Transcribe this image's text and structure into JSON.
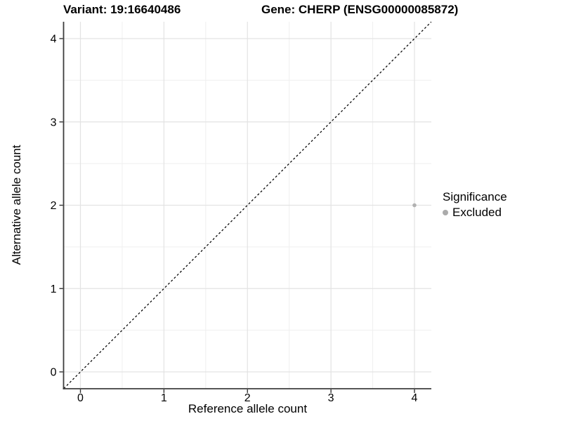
{
  "figure": {
    "titles": {
      "variant": "Variant: 19:16640486",
      "gene": "Gene: CHERP (ENSG00000085872)"
    }
  },
  "chart_data": {
    "type": "scatter",
    "xlabel": "Reference allele count",
    "ylabel": "Alternative allele count",
    "x_ticks": [
      0,
      1,
      2,
      3,
      4
    ],
    "y_ticks": [
      0,
      1,
      2,
      3,
      4
    ],
    "xlim": [
      -0.2,
      4.2
    ],
    "ylim": [
      -0.2,
      4.2
    ],
    "grid": {
      "major": true,
      "minor": true
    },
    "reference_line": {
      "kind": "identity",
      "x1": -0.2,
      "y1": -0.2,
      "x2": 4.2,
      "y2": 4.2,
      "style": "dashed",
      "color": "#000000"
    },
    "series": [
      {
        "name": "Excluded",
        "color": "#b1b1b1",
        "points": [
          [
            4,
            2
          ]
        ]
      }
    ],
    "legend": {
      "title": "Significance",
      "position": "right",
      "items": [
        {
          "label": "Excluded",
          "color": "#ababab"
        }
      ]
    },
    "colors": {
      "grid_major": "#e3e3e3",
      "grid_minor": "#efefef",
      "axis_line": "#3d3d3d",
      "tick": "#333333",
      "text": "#000000"
    }
  }
}
